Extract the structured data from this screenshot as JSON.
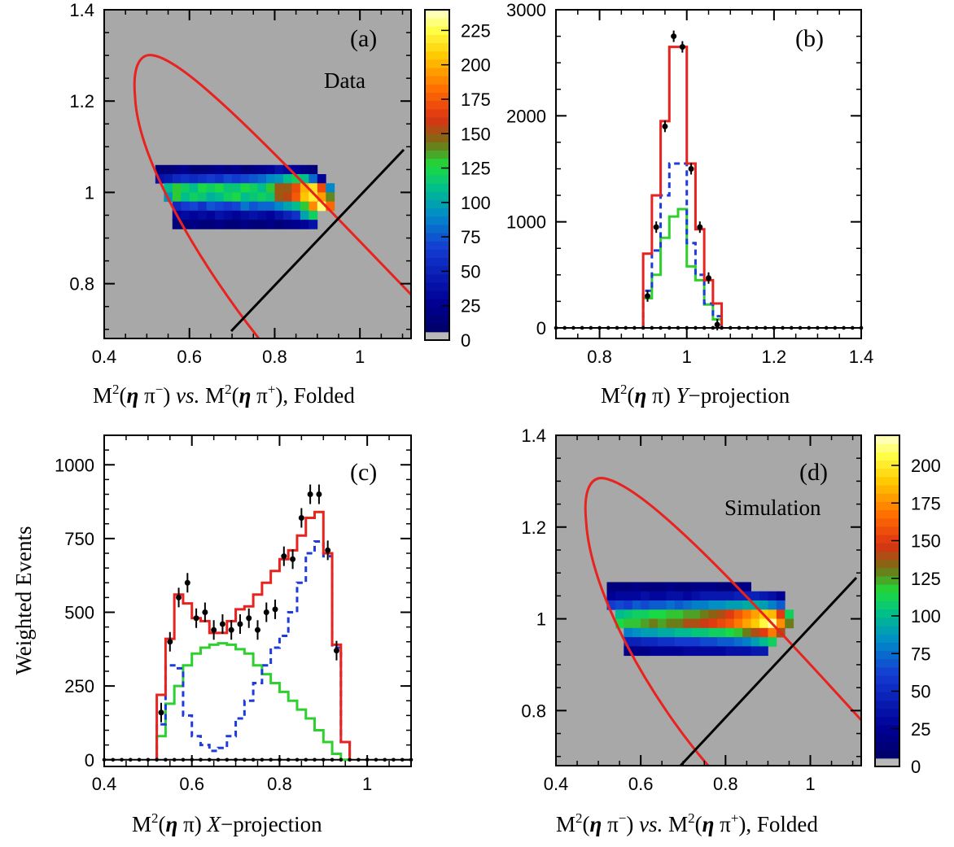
{
  "chart_data": [
    {
      "panel": "(a)",
      "type": "heatmap",
      "label": "Data",
      "xlabel_parts": [
        "M",
        "2",
        "(",
        "η",
        " π",
        "−",
        ") ",
        "vs.",
        " M",
        "2",
        "(",
        "η",
        " π",
        "+",
        "), Folded"
      ],
      "xlim": [
        0.4,
        1.12
      ],
      "ylim": [
        0.68,
        1.4
      ],
      "xticks": [
        "0.4",
        "0.6",
        "0.8",
        "1"
      ],
      "yticks": [
        "0.8",
        "1",
        "1.2",
        "1.4"
      ],
      "colorbar_ticks": [
        "0",
        "25",
        "50",
        "75",
        "100",
        "125",
        "150",
        "175",
        "200",
        "225"
      ],
      "colorbar_max": 240,
      "bin_width": 0.02,
      "bin_height": 0.02,
      "rows": [
        {
          "y": 1.04,
          "x0": 0.52,
          "values": [
            15,
            15,
            20,
            25,
            15,
            15,
            20,
            25,
            20,
            25,
            15,
            20,
            25,
            30,
            40,
            35,
            30,
            20,
            15
          ]
        },
        {
          "y": 1.02,
          "x0": 0.52,
          "values": [
            40,
            45,
            55,
            60,
            55,
            60,
            65,
            60,
            70,
            65,
            70,
            75,
            80,
            90,
            95,
            110,
            120,
            110,
            80,
            30
          ]
        },
        {
          "y": 1.0,
          "x0": 0.54,
          "values": [
            110,
            130,
            120,
            110,
            125,
            120,
            125,
            115,
            115,
            125,
            120,
            110,
            130,
            150,
            150,
            170,
            200,
            215,
            170,
            90
          ]
        },
        {
          "y": 0.98,
          "x0": 0.54,
          "values": [
            95,
            130,
            110,
            120,
            115,
            105,
            110,
            120,
            125,
            110,
            115,
            120,
            115,
            150,
            155,
            175,
            205,
            220,
            195,
            140
          ]
        },
        {
          "y": 0.96,
          "x0": 0.56,
          "values": [
            55,
            65,
            70,
            60,
            75,
            70,
            65,
            70,
            85,
            75,
            80,
            80,
            90,
            100,
            110,
            130,
            190,
            230,
            180
          ]
        },
        {
          "y": 0.94,
          "x0": 0.56,
          "values": [
            30,
            35,
            30,
            35,
            30,
            40,
            35,
            30,
            35,
            40,
            35,
            30,
            40,
            50,
            60,
            100,
            120
          ]
        },
        {
          "y": 0.92,
          "x0": 0.56,
          "values": [
            15,
            15,
            20,
            15,
            15,
            20,
            15,
            15,
            20,
            15,
            15,
            20,
            15,
            20,
            25,
            30,
            40
          ]
        }
      ],
      "curves": [
        "red elliptical kinematic boundary",
        "black diagonal fold line"
      ]
    },
    {
      "panel": "(b)",
      "type": "line",
      "xlabel_parts": [
        "M",
        "2",
        "(",
        "η",
        " π) ",
        "Y",
        "−projection"
      ],
      "xlim": [
        0.7,
        1.4
      ],
      "ylim": [
        -100,
        3000
      ],
      "xticks": [
        "0.8",
        "1",
        "1.2",
        "1.4"
      ],
      "yticks": [
        "0",
        "1000",
        "2000",
        "3000"
      ],
      "bin_edges": [
        0.9,
        0.92,
        0.94,
        0.96,
        0.98,
        1.0,
        1.02,
        1.04,
        1.06,
        1.08
      ],
      "series": [
        {
          "color": "#e8231f",
          "style": "solid",
          "values": [
            700,
            1250,
            1950,
            2650,
            2650,
            1550,
            930,
            450,
            230
          ]
        },
        {
          "color": "#1e3cdc",
          "style": "dashed",
          "values": [
            350,
            730,
            1250,
            1550,
            1550,
            800,
            500,
            230,
            110
          ]
        },
        {
          "color": "#2ed02e",
          "style": "solid",
          "values": [
            280,
            500,
            850,
            1050,
            1120,
            580,
            450,
            220,
            80
          ]
        }
      ],
      "points": [
        [
          0.91,
          300
        ],
        [
          0.93,
          950
        ],
        [
          0.95,
          1900
        ],
        [
          0.97,
          2750
        ],
        [
          0.99,
          2650
        ],
        [
          1.01,
          1500
        ],
        [
          1.03,
          950
        ],
        [
          1.05,
          470
        ],
        [
          1.07,
          30
        ]
      ]
    },
    {
      "panel": "(c)",
      "type": "line",
      "xlabel_parts": [
        "M",
        "2",
        "(",
        "η",
        " π) ",
        "X",
        "−projection"
      ],
      "ylabel": "Weighted Events",
      "xlim": [
        0.4,
        1.1
      ],
      "ylim": [
        -20,
        1100
      ],
      "xticks": [
        "0.4",
        "0.6",
        "0.8",
        "1"
      ],
      "yticks": [
        "0",
        "250",
        "500",
        "750",
        "1000"
      ],
      "bin_edges": [
        0.52,
        0.54,
        0.56,
        0.58,
        0.6,
        0.62,
        0.64,
        0.66,
        0.68,
        0.7,
        0.72,
        0.74,
        0.76,
        0.78,
        0.8,
        0.82,
        0.84,
        0.86,
        0.88,
        0.9,
        0.92,
        0.94,
        0.96
      ],
      "series": [
        {
          "color": "#e8231f",
          "style": "solid",
          "values": [
            220,
            410,
            560,
            530,
            480,
            470,
            430,
            430,
            470,
            510,
            520,
            560,
            600,
            640,
            680,
            710,
            760,
            820,
            840,
            700,
            390,
            60
          ]
        },
        {
          "color": "#1e3cdc",
          "style": "dashed",
          "values": [
            120,
            320,
            310,
            150,
            80,
            50,
            30,
            40,
            80,
            140,
            200,
            260,
            320,
            380,
            420,
            500,
            600,
            700,
            740,
            690,
            380,
            60
          ]
        },
        {
          "color": "#2ed02e",
          "style": "solid",
          "values": [
            80,
            190,
            250,
            320,
            360,
            380,
            390,
            395,
            390,
            375,
            360,
            320,
            290,
            260,
            230,
            200,
            170,
            140,
            100,
            60,
            20,
            0
          ]
        }
      ],
      "points": [
        [
          0.53,
          160
        ],
        [
          0.55,
          400
        ],
        [
          0.57,
          550
        ],
        [
          0.59,
          600
        ],
        [
          0.61,
          480
        ],
        [
          0.63,
          500
        ],
        [
          0.65,
          440
        ],
        [
          0.67,
          460
        ],
        [
          0.69,
          440
        ],
        [
          0.71,
          460
        ],
        [
          0.73,
          480
        ],
        [
          0.75,
          440
        ],
        [
          0.77,
          500
        ],
        [
          0.79,
          510
        ],
        [
          0.81,
          690
        ],
        [
          0.83,
          680
        ],
        [
          0.85,
          820
        ],
        [
          0.87,
          900
        ],
        [
          0.89,
          900
        ],
        [
          0.91,
          710
        ],
        [
          0.93,
          370
        ]
      ]
    },
    {
      "panel": "(d)",
      "type": "heatmap",
      "label": "Simulation",
      "xlabel_parts": [
        "M",
        "2",
        "(",
        "η",
        " π",
        "−",
        ") ",
        "vs.",
        " M",
        "2",
        "(",
        "η",
        " π",
        "+",
        "), Folded"
      ],
      "xlim": [
        0.4,
        1.12
      ],
      "ylim": [
        0.68,
        1.4
      ],
      "xticks": [
        "0.4",
        "0.6",
        "0.8",
        "1"
      ],
      "yticks": [
        "0.8",
        "1",
        "1.2",
        "1.4"
      ],
      "colorbar_ticks": [
        "0",
        "25",
        "50",
        "75",
        "100",
        "125",
        "150",
        "175",
        "200"
      ],
      "colorbar_max": 220,
      "bin_width": 0.02,
      "bin_height": 0.02,
      "rows": [
        {
          "y": 1.06,
          "x0": 0.52,
          "values": [
            15,
            15,
            15,
            20,
            15,
            15,
            15,
            20,
            15,
            15,
            20,
            20,
            20,
            15,
            15,
            15,
            20
          ]
        },
        {
          "y": 1.04,
          "x0": 0.52,
          "values": [
            25,
            30,
            30,
            30,
            35,
            30,
            30,
            35,
            35,
            30,
            35,
            40,
            40,
            40,
            40,
            45,
            45,
            45,
            40,
            35,
            25
          ]
        },
        {
          "y": 1.02,
          "x0": 0.52,
          "values": [
            60,
            65,
            60,
            70,
            65,
            70,
            70,
            75,
            70,
            75,
            80,
            80,
            85,
            85,
            90,
            90,
            95,
            95,
            90,
            80,
            70
          ]
        },
        {
          "y": 1.0,
          "x0": 0.54,
          "values": [
            100,
            105,
            110,
            110,
            115,
            115,
            120,
            120,
            125,
            125,
            130,
            135,
            140,
            150,
            160,
            170,
            180,
            190,
            185,
            150,
            110
          ]
        },
        {
          "y": 0.98,
          "x0": 0.54,
          "values": [
            115,
            120,
            120,
            125,
            130,
            125,
            130,
            130,
            140,
            140,
            145,
            150,
            155,
            160,
            170,
            180,
            190,
            205,
            215,
            175,
            130
          ]
        },
        {
          "y": 0.96,
          "x0": 0.56,
          "values": [
            80,
            85,
            90,
            90,
            95,
            95,
            100,
            100,
            105,
            105,
            110,
            110,
            115,
            120,
            130,
            140,
            150,
            170,
            140
          ]
        },
        {
          "y": 0.94,
          "x0": 0.56,
          "values": [
            45,
            45,
            50,
            50,
            55,
            55,
            60,
            60,
            60,
            65,
            65,
            70,
            70,
            75,
            80,
            90,
            100,
            110
          ]
        },
        {
          "y": 0.92,
          "x0": 0.56,
          "values": [
            20,
            20,
            20,
            25,
            25,
            25,
            25,
            30,
            30,
            30,
            30,
            30,
            35,
            35,
            35,
            40,
            40
          ]
        }
      ],
      "curves": [
        "red elliptical kinematic boundary",
        "black diagonal fold line"
      ]
    }
  ]
}
